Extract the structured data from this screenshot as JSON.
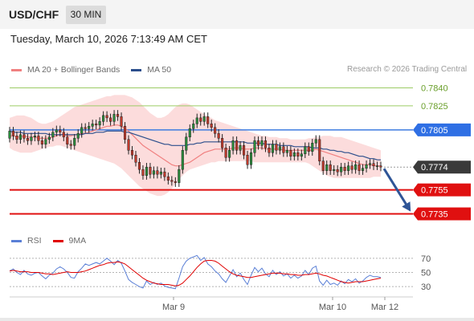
{
  "header": {
    "symbol": "USD/CHF",
    "timeframe": "30 MIN",
    "datetime": "Tuesday, March 10, 2026 7:13:49 AM CET"
  },
  "legend": {
    "ma20_label": "MA 20 + Bollinger Bands",
    "ma20_color": "#f08080",
    "ma50_label": "MA 50",
    "ma50_color": "#2b4e8c",
    "rsi_label": "RSI",
    "rsi_color": "#5a7fd6",
    "ma9_label": "9MA",
    "ma9_color": "#e00000"
  },
  "copyright": "Research © 2026 Trading Central",
  "chart_data": [
    {
      "type": "candlestick",
      "title": "",
      "ylim": [
        0.7726,
        0.7849
      ],
      "x_ticks": [
        "Mar 9",
        "Mar 10",
        "Mar 12"
      ],
      "candles_open_close": [
        [
          0.7798,
          0.7804
        ],
        [
          0.7804,
          0.78
        ],
        [
          0.78,
          0.7797
        ],
        [
          0.7797,
          0.7801
        ],
        [
          0.7801,
          0.7798
        ],
        [
          0.7798,
          0.7796
        ],
        [
          0.7796,
          0.7799
        ],
        [
          0.7799,
          0.78
        ],
        [
          0.78,
          0.7796
        ],
        [
          0.7796,
          0.7793
        ],
        [
          0.7793,
          0.7797
        ],
        [
          0.7797,
          0.7799
        ],
        [
          0.7799,
          0.7803
        ],
        [
          0.7803,
          0.7805
        ],
        [
          0.7805,
          0.7803
        ],
        [
          0.7803,
          0.7799
        ],
        [
          0.7799,
          0.7793
        ],
        [
          0.7793,
          0.7792
        ],
        [
          0.7792,
          0.7798
        ],
        [
          0.7798,
          0.7802
        ],
        [
          0.7802,
          0.7807
        ],
        [
          0.7807,
          0.7806
        ],
        [
          0.7806,
          0.7808
        ],
        [
          0.7808,
          0.781
        ],
        [
          0.781,
          0.7809
        ],
        [
          0.7809,
          0.7812
        ],
        [
          0.7812,
          0.7817
        ],
        [
          0.7817,
          0.7815
        ],
        [
          0.7815,
          0.7812
        ],
        [
          0.7812,
          0.7818
        ],
        [
          0.7818,
          0.7816
        ],
        [
          0.7816,
          0.7808
        ],
        [
          0.7808,
          0.7797
        ],
        [
          0.7797,
          0.7788
        ],
        [
          0.7788,
          0.7784
        ],
        [
          0.7784,
          0.7778
        ],
        [
          0.7778,
          0.7772
        ],
        [
          0.7772,
          0.7767
        ],
        [
          0.7767,
          0.7774
        ],
        [
          0.7774,
          0.7768
        ],
        [
          0.7768,
          0.7771
        ],
        [
          0.7771,
          0.7768
        ],
        [
          0.7768,
          0.777
        ],
        [
          0.777,
          0.7766
        ],
        [
          0.7766,
          0.7763
        ],
        [
          0.7763,
          0.7762
        ],
        [
          0.7762,
          0.7761
        ],
        [
          0.7761,
          0.7772
        ],
        [
          0.7772,
          0.7788
        ],
        [
          0.7788,
          0.7799
        ],
        [
          0.7799,
          0.7806
        ],
        [
          0.7806,
          0.781
        ],
        [
          0.781,
          0.7815
        ],
        [
          0.7815,
          0.7812
        ],
        [
          0.7812,
          0.7816
        ],
        [
          0.7816,
          0.781
        ],
        [
          0.781,
          0.7807
        ],
        [
          0.7807,
          0.7802
        ],
        [
          0.7802,
          0.7798
        ],
        [
          0.7798,
          0.779
        ],
        [
          0.779,
          0.7782
        ],
        [
          0.7782,
          0.7788
        ],
        [
          0.7788,
          0.7796
        ],
        [
          0.7796,
          0.7788
        ],
        [
          0.7788,
          0.7792
        ],
        [
          0.7792,
          0.7784
        ],
        [
          0.7784,
          0.7776
        ],
        [
          0.7776,
          0.7786
        ],
        [
          0.7786,
          0.7796
        ],
        [
          0.7796,
          0.7792
        ],
        [
          0.7792,
          0.7796
        ],
        [
          0.7796,
          0.779
        ],
        [
          0.779,
          0.7786
        ],
        [
          0.7786,
          0.7793
        ],
        [
          0.7793,
          0.7788
        ],
        [
          0.7788,
          0.7791
        ],
        [
          0.7791,
          0.7786
        ],
        [
          0.7786,
          0.7788
        ],
        [
          0.7788,
          0.7783
        ],
        [
          0.7783,
          0.7786
        ],
        [
          0.7786,
          0.7783
        ],
        [
          0.7783,
          0.7785
        ],
        [
          0.7785,
          0.7791
        ],
        [
          0.7791,
          0.7787
        ],
        [
          0.7787,
          0.7794
        ],
        [
          0.7794,
          0.7797
        ],
        [
          0.7797,
          0.7779
        ],
        [
          0.7779,
          0.7771
        ],
        [
          0.7771,
          0.7776
        ],
        [
          0.7776,
          0.7771
        ],
        [
          0.7771,
          0.7772
        ],
        [
          0.7772,
          0.777
        ],
        [
          0.777,
          0.7774
        ],
        [
          0.7774,
          0.7771
        ],
        [
          0.7771,
          0.7775
        ],
        [
          0.7775,
          0.7772
        ],
        [
          0.7772,
          0.7776
        ],
        [
          0.7776,
          0.7771
        ],
        [
          0.7771,
          0.7773
        ],
        [
          0.7773,
          0.7776
        ],
        [
          0.7776,
          0.7777
        ],
        [
          0.7777,
          0.7775
        ],
        [
          0.7775,
          0.7775
        ],
        [
          0.7775,
          0.7774
        ]
      ],
      "ma20": [
        0.78,
        0.78,
        0.7799,
        0.7799,
        0.78,
        0.7799,
        0.7799,
        0.7799,
        0.7798,
        0.7798,
        0.7798,
        0.7798,
        0.7799,
        0.78,
        0.7801,
        0.7801,
        0.78,
        0.78,
        0.7801,
        0.7801,
        0.7802,
        0.7802,
        0.7803,
        0.7804,
        0.7805,
        0.7806,
        0.7807,
        0.7808,
        0.7808,
        0.7809,
        0.7809,
        0.7808,
        0.7806,
        0.7804,
        0.7801,
        0.7798,
        0.7795,
        0.7792,
        0.779,
        0.7788,
        0.7786,
        0.7784,
        0.7782,
        0.778,
        0.7778,
        0.7776,
        0.7775,
        0.7775,
        0.7776,
        0.7777,
        0.7778,
        0.778,
        0.7782,
        0.7784,
        0.7786,
        0.7787,
        0.7788,
        0.7789,
        0.7789,
        0.7789,
        0.7789,
        0.7789,
        0.779,
        0.779,
        0.779,
        0.7789,
        0.7789,
        0.7789,
        0.779,
        0.779,
        0.779,
        0.7789,
        0.7789,
        0.7789,
        0.7789,
        0.7789,
        0.7788,
        0.7788,
        0.7788,
        0.7788,
        0.7788,
        0.7788,
        0.7788,
        0.7788,
        0.7788,
        0.7789,
        0.7788,
        0.7787,
        0.7786,
        0.7785,
        0.7784,
        0.7783,
        0.7782,
        0.7781,
        0.778,
        0.7779,
        0.7778,
        0.7777,
        0.7776,
        0.7776,
        0.7776,
        0.7775,
        0.7775,
        0.7775
      ],
      "ma50": [
        0.7804,
        0.7803,
        0.7803,
        0.7803,
        0.7802,
        0.7802,
        0.7802,
        0.7802,
        0.7802,
        0.7802,
        0.7802,
        0.7801,
        0.7801,
        0.7801,
        0.7801,
        0.7801,
        0.7801,
        0.7801,
        0.7801,
        0.7801,
        0.7801,
        0.7802,
        0.7802,
        0.7802,
        0.7803,
        0.7803,
        0.7803,
        0.7804,
        0.7804,
        0.7804,
        0.7804,
        0.7804,
        0.7803,
        0.7803,
        0.7802,
        0.7801,
        0.78,
        0.7799,
        0.7798,
        0.7797,
        0.7796,
        0.7795,
        0.7794,
        0.7793,
        0.7793,
        0.7792,
        0.7792,
        0.7792,
        0.7792,
        0.7792,
        0.7793,
        0.7793,
        0.7794,
        0.7794,
        0.7795,
        0.7795,
        0.7795,
        0.7795,
        0.7795,
        0.7795,
        0.7795,
        0.7795,
        0.7795,
        0.7795,
        0.7795,
        0.7795,
        0.7794,
        0.7794,
        0.7794,
        0.7794,
        0.7794,
        0.7793,
        0.7793,
        0.7793,
        0.7793,
        0.7792,
        0.7792,
        0.7792,
        0.7792,
        0.7791,
        0.7791,
        0.7791,
        0.7791,
        0.7791,
        0.779,
        0.779,
        0.779,
        0.7789,
        0.7789,
        0.7788,
        0.7788,
        0.7787,
        0.7787,
        0.7786,
        0.7786,
        0.7785,
        0.7784,
        0.7783,
        0.7783,
        0.7782,
        0.7781,
        0.7781,
        0.778,
        0.778
      ],
      "bb_upper": [
        0.7815,
        0.7816,
        0.7817,
        0.7817,
        0.7817,
        0.7816,
        0.7815,
        0.7813,
        0.7811,
        0.781,
        0.781,
        0.7811,
        0.7812,
        0.7814,
        0.7816,
        0.7818,
        0.782,
        0.7822,
        0.7824,
        0.7825,
        0.7826,
        0.7827,
        0.7828,
        0.7829,
        0.783,
        0.7831,
        0.7832,
        0.7833,
        0.7833,
        0.7834,
        0.7834,
        0.7834,
        0.7834,
        0.7833,
        0.7832,
        0.783,
        0.7828,
        0.7825,
        0.7822,
        0.7819,
        0.7817,
        0.7815,
        0.7815,
        0.7816,
        0.7818,
        0.7821,
        0.7824,
        0.7826,
        0.7827,
        0.7827,
        0.7826,
        0.7824,
        0.7822,
        0.782,
        0.7818,
        0.7816,
        0.7815,
        0.7813,
        0.7812,
        0.7811,
        0.781,
        0.7809,
        0.7808,
        0.7807,
        0.7806,
        0.7805,
        0.7804,
        0.7803,
        0.7802,
        0.7801,
        0.78,
        0.78,
        0.7799,
        0.7799,
        0.7799,
        0.7798,
        0.7798,
        0.7798,
        0.7797,
        0.7797,
        0.7797,
        0.7797,
        0.7797,
        0.7798,
        0.7798,
        0.7799,
        0.7799,
        0.78,
        0.78,
        0.78,
        0.7799,
        0.7799,
        0.7799,
        0.7798,
        0.7797,
        0.7796,
        0.7795,
        0.7794,
        0.7793,
        0.7792,
        0.7791,
        0.779,
        0.7789,
        0.7788
      ],
      "bb_lower": [
        0.779,
        0.7788,
        0.7787,
        0.7786,
        0.7786,
        0.7786,
        0.7786,
        0.7787,
        0.7788,
        0.7789,
        0.779,
        0.7791,
        0.7791,
        0.7792,
        0.7792,
        0.7791,
        0.779,
        0.7789,
        0.7788,
        0.7787,
        0.7786,
        0.7785,
        0.7784,
        0.7783,
        0.7782,
        0.7781,
        0.778,
        0.7779,
        0.7778,
        0.7777,
        0.7775,
        0.7773,
        0.777,
        0.7767,
        0.7764,
        0.7761,
        0.7758,
        0.7756,
        0.7754,
        0.7752,
        0.7751,
        0.775,
        0.775,
        0.7751,
        0.7753,
        0.7756,
        0.776,
        0.7764,
        0.7767,
        0.777,
        0.7772,
        0.7773,
        0.7774,
        0.7775,
        0.7776,
        0.7777,
        0.7778,
        0.7778,
        0.7779,
        0.7779,
        0.7779,
        0.7779,
        0.7779,
        0.7779,
        0.7779,
        0.7779,
        0.7779,
        0.7779,
        0.7778,
        0.7778,
        0.7778,
        0.7778,
        0.7778,
        0.7778,
        0.7778,
        0.7778,
        0.7778,
        0.7778,
        0.7778,
        0.7778,
        0.7778,
        0.7778,
        0.7778,
        0.7777,
        0.7775,
        0.7773,
        0.7771,
        0.7769,
        0.7767,
        0.7766,
        0.7765,
        0.7765,
        0.7765,
        0.7765,
        0.7765,
        0.7765,
        0.7765,
        0.7765,
        0.7765,
        0.7765,
        0.7765,
        0.7766,
        0.7766,
        0.7766
      ],
      "levels": [
        {
          "value": 0.784,
          "label": "0.7840",
          "style": "target-green"
        },
        {
          "value": 0.7825,
          "label": "0.7825",
          "style": "target-green"
        },
        {
          "value": 0.7805,
          "label": "0.7805",
          "style": "resistance-blue"
        },
        {
          "value": 0.7774,
          "label": "0.7774",
          "style": "last-price"
        },
        {
          "value": 0.7755,
          "label": "0.7755",
          "style": "support-red"
        },
        {
          "value": 0.7735,
          "label": "0.7735",
          "style": "support-red"
        }
      ],
      "last_price": 0.7774,
      "projection": {
        "from": 0.7774,
        "to": 0.7735,
        "direction": "down"
      }
    },
    {
      "type": "line",
      "title": "",
      "ylim": [
        20,
        80
      ],
      "y_ticks": [
        70,
        50,
        30
      ],
      "series": [
        {
          "name": "RSI",
          "values": [
            52,
            55,
            50,
            47,
            53,
            48,
            46,
            49,
            50,
            45,
            41,
            46,
            49,
            55,
            58,
            55,
            50,
            43,
            42,
            51,
            56,
            62,
            60,
            62,
            64,
            62,
            66,
            70,
            66,
            61,
            67,
            63,
            52,
            40,
            36,
            33,
            30,
            28,
            38,
            33,
            36,
            33,
            35,
            31,
            29,
            28,
            27,
            42,
            58,
            66,
            70,
            72,
            74,
            67,
            71,
            62,
            58,
            52,
            48,
            41,
            36,
            45,
            54,
            44,
            49,
            40,
            33,
            46,
            57,
            51,
            56,
            48,
            44,
            53,
            47,
            51,
            45,
            48,
            42,
            46,
            42,
            45,
            53,
            47,
            56,
            59,
            38,
            32,
            39,
            33,
            35,
            32,
            38,
            34,
            40,
            37,
            41,
            35,
            38,
            43,
            46,
            44,
            44,
            43
          ]
        },
        {
          "name": "9MA",
          "values": [
            52,
            53,
            52,
            51,
            51,
            51,
            50,
            50,
            50,
            49,
            48,
            48,
            47,
            48,
            49,
            50,
            51,
            50,
            50,
            50,
            51,
            52,
            54,
            56,
            58,
            60,
            61,
            63,
            64,
            64,
            65,
            64,
            62,
            58,
            54,
            50,
            46,
            42,
            39,
            37,
            35,
            34,
            33,
            33,
            33,
            32,
            31,
            32,
            35,
            40,
            45,
            51,
            57,
            62,
            66,
            67,
            67,
            66,
            63,
            59,
            55,
            51,
            48,
            46,
            45,
            44,
            43,
            43,
            44,
            45,
            46,
            47,
            48,
            49,
            49,
            49,
            48,
            48,
            47,
            47,
            46,
            46,
            47,
            47,
            48,
            49,
            48,
            46,
            45,
            43,
            41,
            39,
            37,
            36,
            35,
            36,
            37,
            37,
            37,
            38,
            39,
            40,
            41,
            42
          ]
        }
      ]
    }
  ]
}
